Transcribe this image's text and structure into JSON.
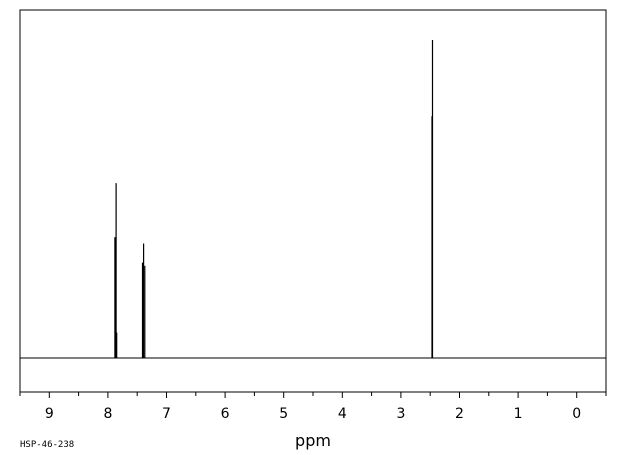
{
  "chart_data": {
    "type": "line",
    "xlabel": "ppm",
    "xlim": [
      9.5,
      -0.5
    ],
    "x_reversed": true,
    "ylim": [
      0,
      100
    ],
    "grid": false,
    "ticks": [
      "9",
      "8",
      "7",
      "6",
      "5",
      "4",
      "3",
      "2",
      "1",
      "0"
    ],
    "tick_values": [
      9,
      8,
      7,
      6,
      5,
      4,
      3,
      2,
      1,
      0
    ],
    "minor_tick_step": 0.5,
    "peaks": [
      {
        "ppm": 7.88,
        "intensity": 38
      },
      {
        "ppm": 7.86,
        "intensity": 55
      },
      {
        "ppm": 7.85,
        "intensity": 8
      },
      {
        "ppm": 7.41,
        "intensity": 30
      },
      {
        "ppm": 7.39,
        "intensity": 36
      },
      {
        "ppm": 7.37,
        "intensity": 29
      },
      {
        "ppm": 2.47,
        "intensity": 76
      },
      {
        "ppm": 2.46,
        "intensity": 100
      }
    ],
    "code": "HSP-46-238"
  }
}
